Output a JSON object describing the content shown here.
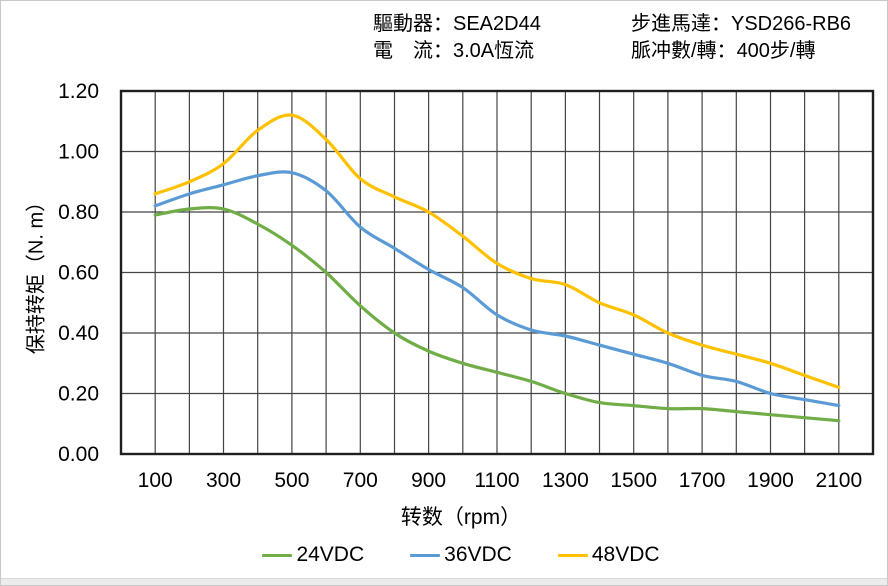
{
  "header": {
    "items": [
      {
        "label": "驅動器：",
        "value": "SEA2D44"
      },
      {
        "label": "電　流：",
        "value": "3.0A恆流"
      },
      {
        "label": "步進馬達：",
        "value": "YSD266-RB6"
      },
      {
        "label": "脈冲數/轉：",
        "value": "400步/轉"
      }
    ]
  },
  "chart_data": {
    "type": "line",
    "title": "",
    "xlabel": "转数（rpm）",
    "ylabel": "保持转矩（N. m）",
    "xlim": [
      0,
      2200
    ],
    "ylim": [
      0,
      1.2
    ],
    "x_grid_step": 100,
    "y_grid_step": 0.2,
    "grid": true,
    "legend_position": "bottom",
    "x_ticks": [
      100,
      300,
      500,
      700,
      900,
      1100,
      1300,
      1500,
      1700,
      1900,
      2100
    ],
    "y_ticks": [
      "0.00",
      "0.20",
      "0.40",
      "0.60",
      "0.80",
      "1.00",
      "1.20"
    ],
    "x": [
      100,
      200,
      300,
      400,
      500,
      600,
      700,
      800,
      900,
      1000,
      1100,
      1200,
      1300,
      1400,
      1500,
      1600,
      1700,
      1800,
      1900,
      2000,
      2100
    ],
    "series": [
      {
        "name": "24VDC",
        "color": "#70AD47",
        "values": [
          0.79,
          0.81,
          0.81,
          0.76,
          0.69,
          0.6,
          0.49,
          0.4,
          0.34,
          0.3,
          0.27,
          0.24,
          0.2,
          0.17,
          0.16,
          0.15,
          0.15,
          0.14,
          0.13,
          0.12,
          0.11
        ]
      },
      {
        "name": "36VDC",
        "color": "#5B9BD5",
        "values": [
          0.82,
          0.86,
          0.89,
          0.92,
          0.93,
          0.87,
          0.75,
          0.68,
          0.61,
          0.55,
          0.46,
          0.41,
          0.39,
          0.36,
          0.33,
          0.3,
          0.26,
          0.24,
          0.2,
          0.18,
          0.16
        ]
      },
      {
        "name": "48VDC",
        "color": "#FFC000",
        "values": [
          0.86,
          0.9,
          0.96,
          1.07,
          1.12,
          1.04,
          0.91,
          0.85,
          0.8,
          0.72,
          0.63,
          0.58,
          0.56,
          0.5,
          0.46,
          0.4,
          0.36,
          0.33,
          0.3,
          0.26,
          0.22
        ]
      }
    ]
  }
}
